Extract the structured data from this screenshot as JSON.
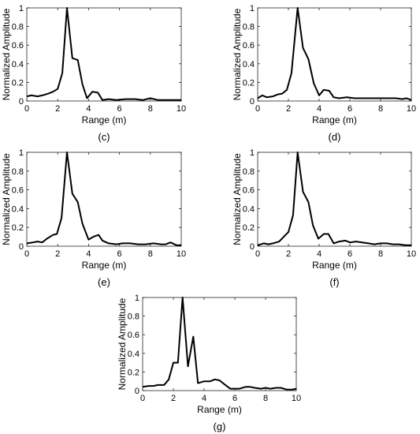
{
  "chart_data": [
    {
      "type": "line",
      "panel_label": "(c)",
      "xlabel": "Range (m)",
      "ylabel": "Normalized Amplitude",
      "xlim": [
        0,
        10
      ],
      "ylim": [
        0,
        1
      ],
      "xticks": [
        0,
        2,
        4,
        6,
        8,
        10
      ],
      "yticks": [
        0,
        0.2,
        0.4,
        0.6,
        0.8,
        1
      ],
      "grid": false,
      "series": [
        {
          "x": [
            0,
            0.3,
            0.7,
            1.0,
            1.4,
            1.7,
            2.0,
            2.3,
            2.6,
            2.95,
            3.3,
            3.6,
            3.9,
            4.25,
            4.6,
            4.9,
            5.3,
            5.8,
            6.4,
            7.0,
            7.5,
            8.0,
            8.5,
            9.0,
            9.5,
            10.0
          ],
          "y": [
            0.05,
            0.06,
            0.05,
            0.06,
            0.08,
            0.1,
            0.13,
            0.3,
            1.0,
            0.46,
            0.44,
            0.18,
            0.03,
            0.1,
            0.09,
            0.01,
            0.02,
            0.01,
            0.02,
            0.02,
            0.01,
            0.03,
            0.01,
            0.01,
            0.01,
            0.01
          ]
        }
      ]
    },
    {
      "type": "line",
      "panel_label": "(d)",
      "xlabel": "Range (m)",
      "ylabel": "Normalized Amplitude",
      "xlim": [
        0,
        10
      ],
      "ylim": [
        0,
        1
      ],
      "xticks": [
        0,
        2,
        4,
        6,
        8,
        10
      ],
      "yticks": [
        0,
        0.2,
        0.4,
        0.6,
        0.8,
        1
      ],
      "grid": false,
      "series": [
        {
          "x": [
            0,
            0.3,
            0.6,
            1.0,
            1.3,
            1.6,
            1.9,
            2.2,
            2.6,
            2.95,
            3.3,
            3.65,
            4.0,
            4.3,
            4.65,
            4.95,
            5.3,
            5.8,
            6.3,
            7.0,
            7.5,
            8.0,
            8.5,
            9.0,
            9.4,
            9.7,
            10.0
          ],
          "y": [
            0.03,
            0.06,
            0.04,
            0.05,
            0.07,
            0.08,
            0.12,
            0.3,
            1.0,
            0.57,
            0.45,
            0.19,
            0.06,
            0.12,
            0.11,
            0.04,
            0.03,
            0.04,
            0.03,
            0.03,
            0.03,
            0.03,
            0.03,
            0.03,
            0.02,
            0.03,
            0.01
          ]
        }
      ]
    },
    {
      "type": "line",
      "panel_label": "(e)",
      "xlabel": "Range (m)",
      "ylabel": "Normalized Amplitude",
      "xlim": [
        0,
        10
      ],
      "ylim": [
        0,
        1
      ],
      "xticks": [
        0,
        2,
        4,
        6,
        8,
        10
      ],
      "yticks": [
        0,
        0.2,
        0.4,
        0.6,
        0.8,
        1
      ],
      "grid": false,
      "series": [
        {
          "x": [
            0,
            0.4,
            0.7,
            1.0,
            1.3,
            1.7,
            1.95,
            2.25,
            2.6,
            2.95,
            3.3,
            3.6,
            4.0,
            4.3,
            4.65,
            4.9,
            5.3,
            5.8,
            6.2,
            6.7,
            7.2,
            7.7,
            8.2,
            8.7,
            9.0,
            9.3,
            9.7,
            10.0
          ],
          "y": [
            0.03,
            0.04,
            0.05,
            0.04,
            0.08,
            0.12,
            0.13,
            0.3,
            1.0,
            0.56,
            0.47,
            0.24,
            0.07,
            0.1,
            0.12,
            0.06,
            0.03,
            0.02,
            0.03,
            0.03,
            0.02,
            0.02,
            0.03,
            0.02,
            0.02,
            0.04,
            0.01,
            0.01
          ]
        }
      ]
    },
    {
      "type": "line",
      "panel_label": "(f)",
      "xlabel": "Range (m)",
      "ylabel": "Normalized Amplitude",
      "xlim": [
        0,
        10
      ],
      "ylim": [
        0,
        1
      ],
      "xticks": [
        0,
        2,
        4,
        6,
        8,
        10
      ],
      "yticks": [
        0,
        0.2,
        0.4,
        0.6,
        0.8,
        1
      ],
      "grid": false,
      "series": [
        {
          "x": [
            0,
            0.4,
            0.7,
            1.0,
            1.4,
            1.7,
            2.0,
            2.3,
            2.6,
            2.95,
            3.3,
            3.6,
            3.95,
            4.3,
            4.6,
            4.95,
            5.3,
            5.7,
            6.0,
            6.4,
            6.8,
            7.2,
            7.6,
            8.0,
            8.4,
            8.8,
            9.2,
            9.6,
            10.0
          ],
          "y": [
            0.01,
            0.03,
            0.02,
            0.03,
            0.05,
            0.1,
            0.15,
            0.33,
            1.0,
            0.58,
            0.47,
            0.22,
            0.08,
            0.13,
            0.13,
            0.03,
            0.05,
            0.06,
            0.04,
            0.05,
            0.04,
            0.03,
            0.02,
            0.03,
            0.03,
            0.02,
            0.02,
            0.01,
            0.01
          ]
        }
      ]
    },
    {
      "type": "line",
      "panel_label": "(g)",
      "xlabel": "Range (m)",
      "ylabel": "Normalized Amplitude",
      "xlim": [
        0,
        10
      ],
      "ylim": [
        0,
        1
      ],
      "xticks": [
        0,
        2,
        4,
        6,
        8,
        10
      ],
      "yticks": [
        0,
        0.2,
        0.4,
        0.6,
        0.8,
        1
      ],
      "grid": false,
      "series": [
        {
          "x": [
            0,
            0.4,
            0.7,
            1.0,
            1.4,
            1.7,
            2.0,
            2.3,
            2.6,
            2.95,
            3.3,
            3.6,
            4.0,
            4.4,
            4.7,
            5.0,
            5.3,
            5.7,
            6.0,
            6.3,
            6.7,
            7.0,
            7.3,
            7.7,
            8.0,
            8.3,
            8.7,
            9.0,
            9.4,
            9.7,
            10.0
          ],
          "y": [
            0.04,
            0.05,
            0.05,
            0.06,
            0.06,
            0.12,
            0.3,
            0.3,
            1.0,
            0.26,
            0.58,
            0.08,
            0.1,
            0.1,
            0.12,
            0.11,
            0.07,
            0.02,
            0.02,
            0.02,
            0.04,
            0.04,
            0.03,
            0.02,
            0.03,
            0.02,
            0.03,
            0.03,
            0.01,
            0.01,
            0.02
          ]
        }
      ]
    }
  ]
}
